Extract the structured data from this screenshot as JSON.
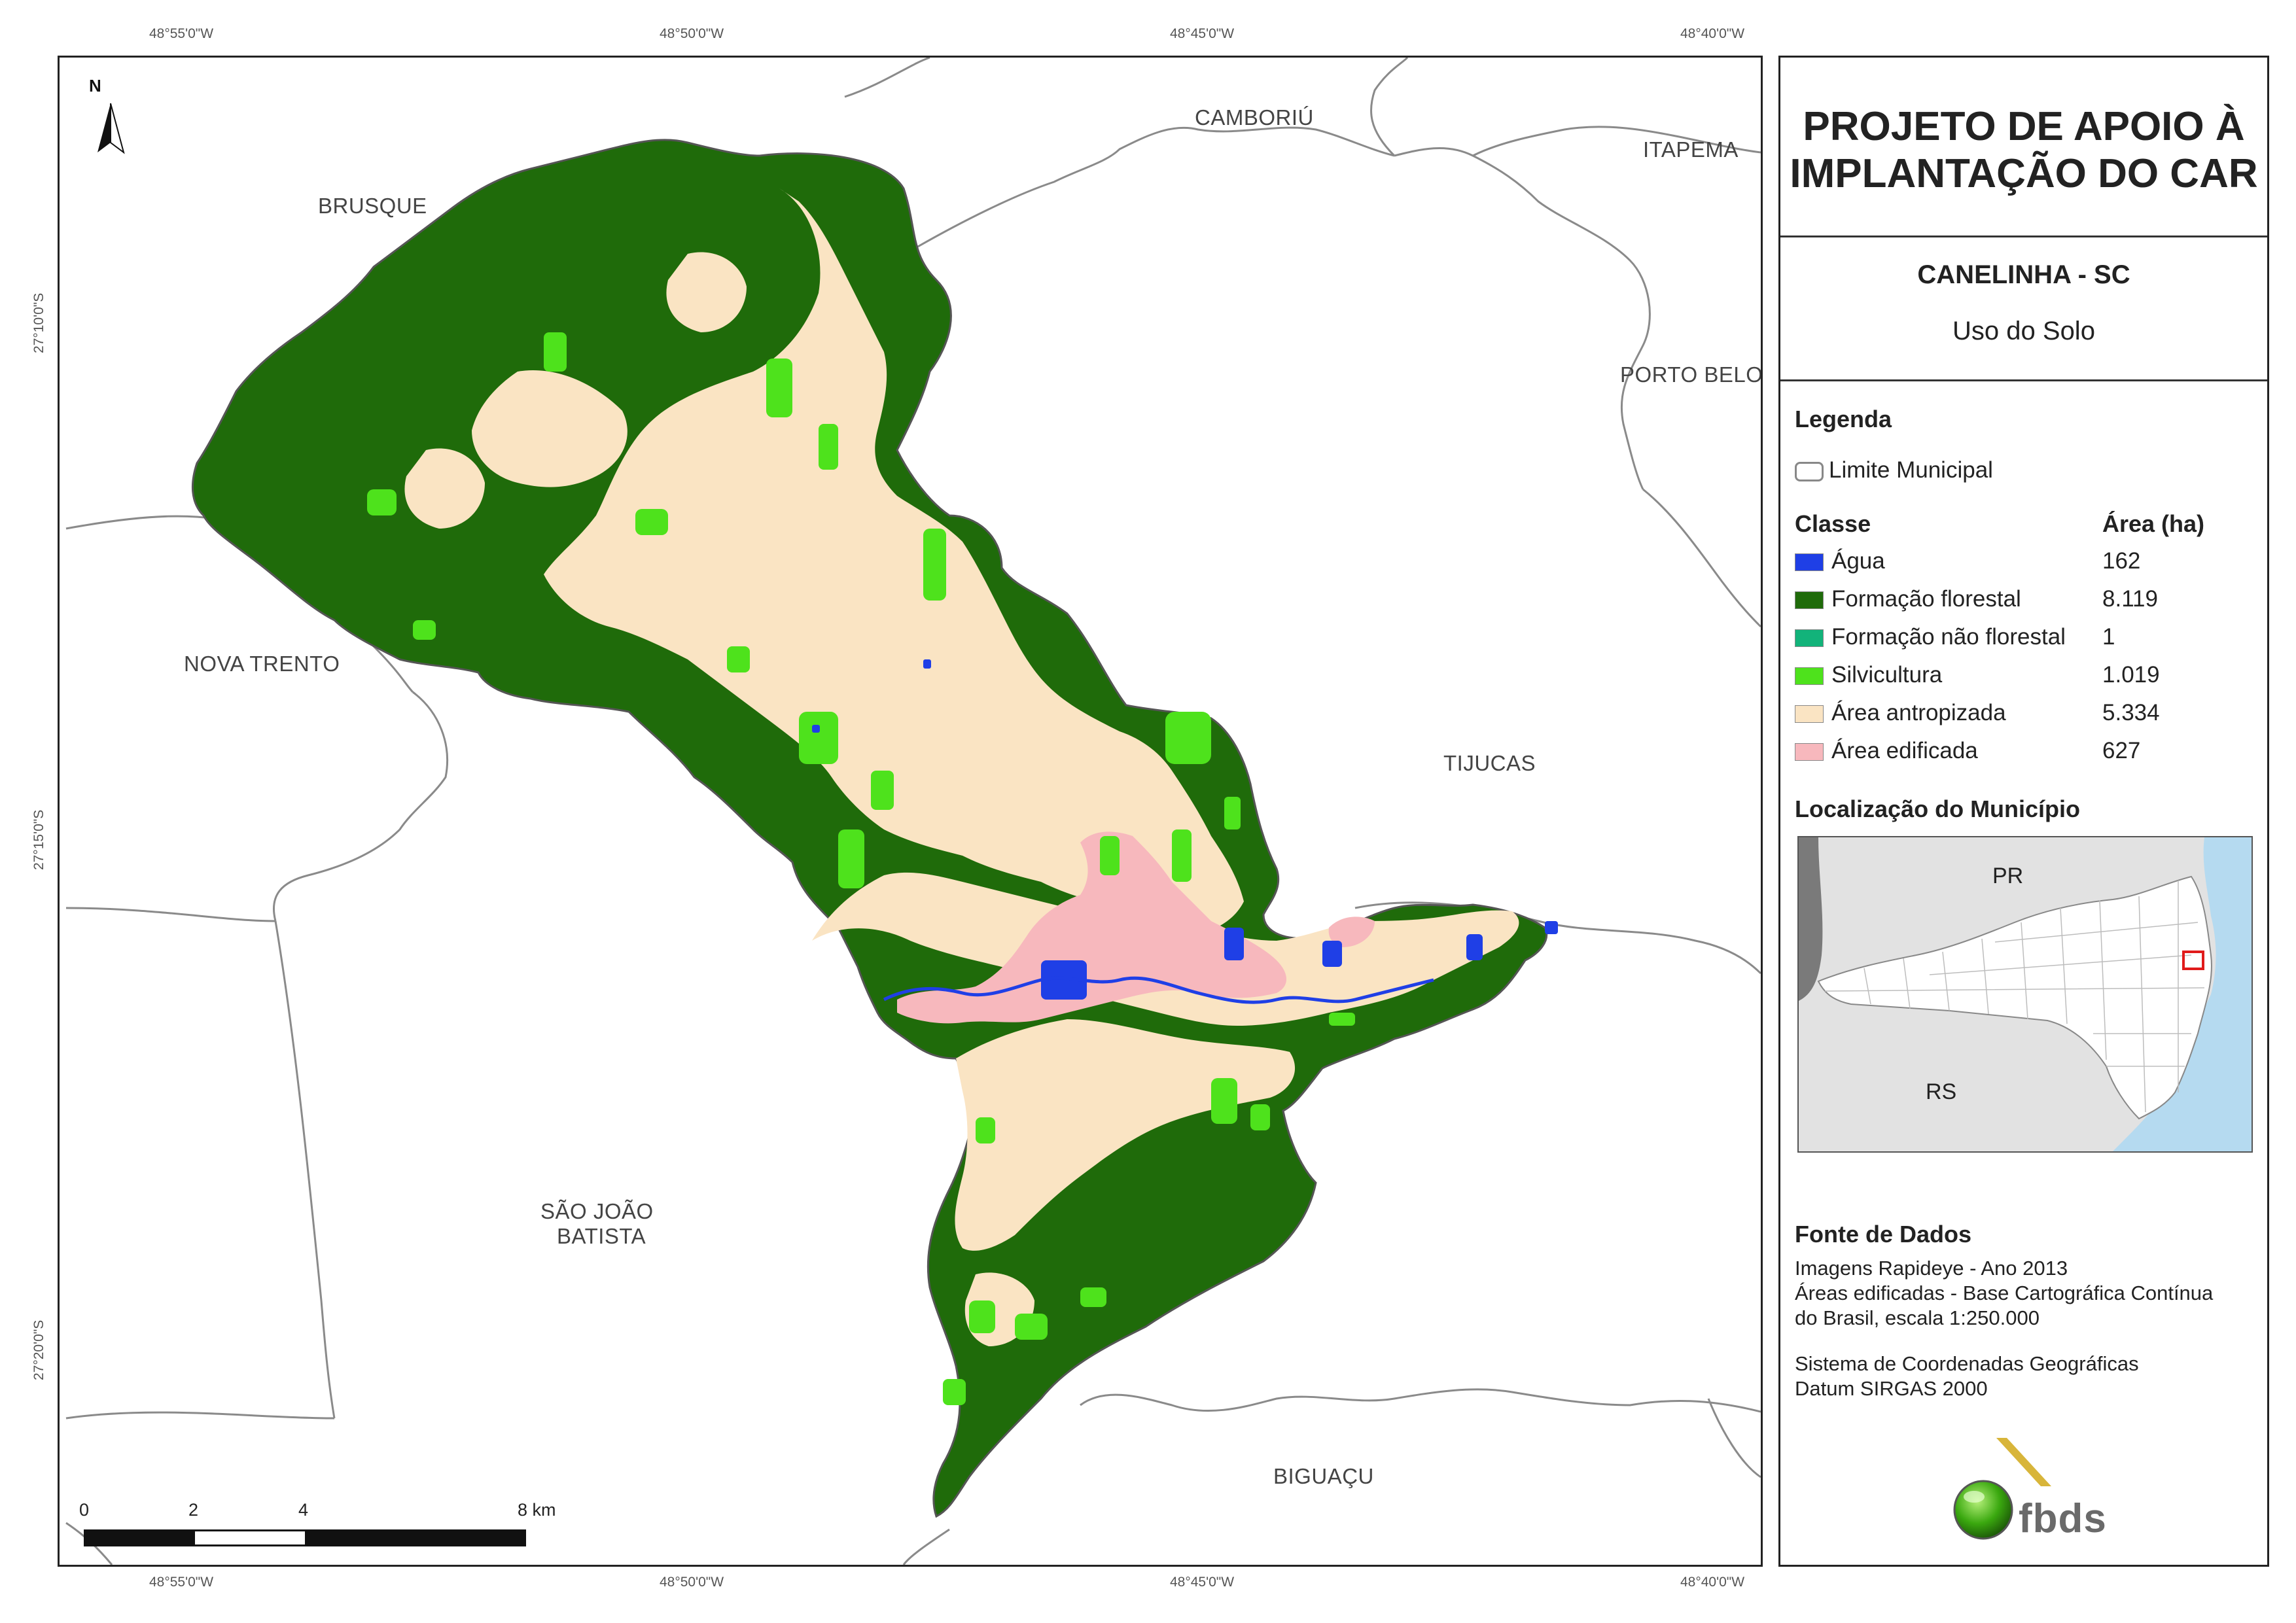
{
  "coordinates": {
    "top": [
      "48°55'0\"W",
      "48°50'0\"W",
      "48°45'0\"W",
      "48°40'0\"W"
    ],
    "bottom": [
      "48°55'0\"W",
      "48°50'0\"W",
      "48°45'0\"W",
      "48°40'0\"W"
    ],
    "left": [
      "27°10'0\"S",
      "27°15'0\"S",
      "27°20'0\"S"
    ]
  },
  "map": {
    "north_label": "N",
    "municipalities": {
      "brusque": "BRUSQUE",
      "camboriu": "CAMBORIÚ",
      "itapema": "ITAPEMA",
      "porto_belo": "PORTO BELO",
      "nova_trento": "NOVA TRENTO",
      "tijucas": "TIJUCAS",
      "sao_joao_1": "SÃO JOÃO",
      "sao_joao_2": "BATISTA",
      "biguacu": "BIGUAÇU"
    },
    "scale_bar": {
      "labels": [
        "0",
        "2",
        "4",
        "8 km"
      ]
    },
    "colors": {
      "agua": "#1f3fe6",
      "formacao_florestal": "#1f6b0a",
      "formacao_nao_florestal": "#12b37a",
      "silvicultura": "#4ee21c",
      "area_antropizada": "#fae4c3",
      "area_edificada": "#f7b8bd",
      "ocean": "#b5daf0",
      "outside_state": "#7a7a7a",
      "state_fill": "#e2e2e2"
    }
  },
  "panel": {
    "title_line1": "PROJETO DE APOIO À",
    "title_line2": "IMPLANTAÇÃO DO CAR",
    "municipality": "CANELINHA - SC",
    "subtitle": "Uso do Solo",
    "legend_title": "Legenda",
    "limit_label": "Limite Municipal",
    "class_header": "Classe",
    "area_header": "Área (ha)",
    "classes": [
      {
        "label": "Água",
        "area": "162",
        "color": "#1f3fe6"
      },
      {
        "label": "Formação florestal",
        "area": "8.119",
        "color": "#1f6b0a"
      },
      {
        "label": "Formação não florestal",
        "area": "1",
        "color": "#12b37a"
      },
      {
        "label": "Silvicultura",
        "area": "1.019",
        "color": "#4ee21c"
      },
      {
        "label": "Área antropizada",
        "area": "5.334",
        "color": "#fae4c3"
      },
      {
        "label": "Área edificada",
        "area": "627",
        "color": "#f7b8bd"
      }
    ],
    "location_title": "Localização do Município",
    "inset_labels": {
      "pr": "PR",
      "rs": "RS"
    },
    "sources_title": "Fonte de Dados",
    "sources": [
      "Imagens Rapideye - Ano 2013",
      "Áreas edificadas - Base Cartográfica Contínua",
      "do Brasil, escala 1:250.000"
    ],
    "crs": [
      "Sistema de Coordenadas Geográficas",
      "Datum SIRGAS 2000"
    ],
    "logo_text": "fbds"
  }
}
